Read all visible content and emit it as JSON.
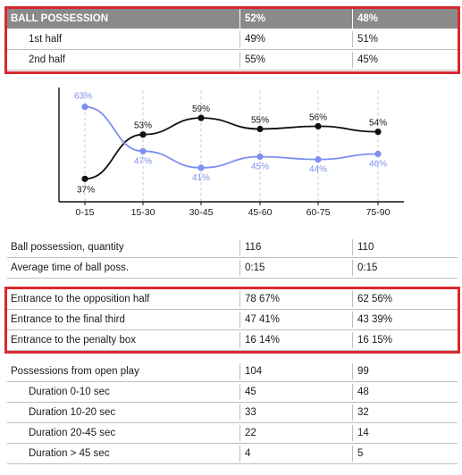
{
  "possession": {
    "header": {
      "label": "BALL POSSESSION",
      "team1": "52%",
      "team2": "48%"
    },
    "rows": [
      {
        "label": "1st half",
        "team1": "49%",
        "team2": "51%"
      },
      {
        "label": "2nd half",
        "team1": "55%",
        "team2": "45%"
      }
    ]
  },
  "chart_data": {
    "type": "line",
    "title": "",
    "xlabel": "",
    "ylabel": "",
    "categories": [
      "0-15",
      "15-30",
      "30-45",
      "45-60",
      "60-75",
      "75-90"
    ],
    "ylim": [
      30,
      70
    ],
    "grid": "vertical dashed",
    "series": [
      {
        "color": "#111111",
        "values": [
          37,
          53,
          59,
          55,
          56,
          54
        ],
        "labels": [
          "37%",
          "53%",
          "59%",
          "55%",
          "56%",
          "54%"
        ]
      },
      {
        "color": "#7d8ff0",
        "values": [
          63,
          47,
          41,
          45,
          44,
          46
        ],
        "labels": [
          "63%",
          "47%",
          "41%",
          "45%",
          "44%",
          "46%"
        ]
      }
    ]
  },
  "quantity": {
    "rows": [
      {
        "label": "Ball possession, quantity",
        "team1": "116",
        "team2": "110"
      },
      {
        "label": "Average time of ball poss.",
        "team1": "0:15",
        "team2": "0:15"
      }
    ]
  },
  "entrances": {
    "rows": [
      {
        "label": "Entrance to the opposition half",
        "team1": "78  67%",
        "team2": "62  56%"
      },
      {
        "label": "Entrance to the final third",
        "team1": "47  41%",
        "team2": "43  39%"
      },
      {
        "label": "Entrance to the penalty box",
        "team1": "16  14%",
        "team2": "16  15%"
      }
    ]
  },
  "open_play": {
    "rows": [
      {
        "label": "Possessions from open play",
        "team1": "104",
        "team2": "99"
      },
      {
        "label": "Duration  0-10 sec",
        "team1": "45",
        "team2": "48"
      },
      {
        "label": "Duration  10-20 sec",
        "team1": "33",
        "team2": "32"
      },
      {
        "label": "Duration  20-45 sec",
        "team1": "22",
        "team2": "14"
      },
      {
        "label": "Duration  > 45 sec",
        "team1": "4",
        "team2": "5"
      }
    ]
  },
  "colors": {
    "highlight": "#d7282f",
    "header_bg": "#8a8a8a",
    "team1_line": "#111111",
    "team2_line": "#7d8ff0"
  }
}
